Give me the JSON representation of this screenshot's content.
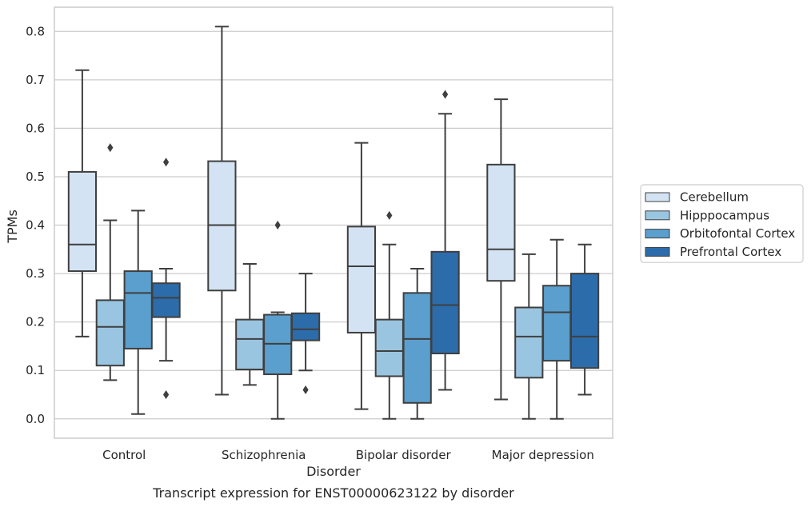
{
  "chart_data": {
    "type": "box",
    "xlabel": "Disorder",
    "ylabel": "TPMs",
    "caption": "Transcript expression for ENST00000623122 by disorder",
    "ylim": [
      -0.04,
      0.85
    ],
    "yticks": [
      "0.0",
      "0.1",
      "0.2",
      "0.3",
      "0.4",
      "0.5",
      "0.6",
      "0.7",
      "0.8"
    ],
    "grid": "horizontal",
    "legend_position": "right",
    "categories": [
      "Control",
      "Schizophrenia",
      "Bipolar disorder",
      "Major depression"
    ],
    "series": [
      {
        "name": "Cerebellum",
        "color": "#d3e3f3",
        "boxes": [
          {
            "whislo": 0.17,
            "q1": 0.305,
            "med": 0.36,
            "q3": 0.51,
            "whishi": 0.72,
            "fliers": []
          },
          {
            "whislo": 0.05,
            "q1": 0.265,
            "med": 0.4,
            "q3": 0.532,
            "whishi": 0.81,
            "fliers": []
          },
          {
            "whislo": 0.02,
            "q1": 0.178,
            "med": 0.315,
            "q3": 0.397,
            "whishi": 0.57,
            "fliers": []
          },
          {
            "whislo": 0.04,
            "q1": 0.285,
            "med": 0.35,
            "q3": 0.525,
            "whishi": 0.66,
            "fliers": []
          }
        ]
      },
      {
        "name": "Hipppocampus",
        "color": "#9ac5e0",
        "boxes": [
          {
            "whislo": 0.08,
            "q1": 0.11,
            "med": 0.19,
            "q3": 0.245,
            "whishi": 0.41,
            "fliers": [
              0.56
            ]
          },
          {
            "whislo": 0.07,
            "q1": 0.102,
            "med": 0.165,
            "q3": 0.205,
            "whishi": 0.32,
            "fliers": []
          },
          {
            "whislo": 0.0,
            "q1": 0.088,
            "med": 0.14,
            "q3": 0.205,
            "whishi": 0.36,
            "fliers": [
              0.42
            ]
          },
          {
            "whislo": 0.0,
            "q1": 0.085,
            "med": 0.17,
            "q3": 0.23,
            "whishi": 0.34,
            "fliers": []
          }
        ]
      },
      {
        "name": "Orbitofontal Cortex",
        "color": "#5a9fcd",
        "boxes": [
          {
            "whislo": 0.01,
            "q1": 0.145,
            "med": 0.26,
            "q3": 0.305,
            "whishi": 0.43,
            "fliers": []
          },
          {
            "whislo": 0.0,
            "q1": 0.092,
            "med": 0.155,
            "q3": 0.215,
            "whishi": 0.22,
            "fliers": [
              0.4
            ]
          },
          {
            "whislo": 0.0,
            "q1": 0.033,
            "med": 0.165,
            "q3": 0.26,
            "whishi": 0.31,
            "fliers": []
          },
          {
            "whislo": 0.0,
            "q1": 0.12,
            "med": 0.22,
            "q3": 0.275,
            "whishi": 0.37,
            "fliers": []
          }
        ]
      },
      {
        "name": "Prefrontal Cortex",
        "color": "#2c6cab",
        "boxes": [
          {
            "whislo": 0.12,
            "q1": 0.21,
            "med": 0.25,
            "q3": 0.28,
            "whishi": 0.31,
            "fliers": [
              0.53,
              0.05
            ]
          },
          {
            "whislo": 0.1,
            "q1": 0.162,
            "med": 0.185,
            "q3": 0.218,
            "whishi": 0.3,
            "fliers": [
              0.06
            ]
          },
          {
            "whislo": 0.06,
            "q1": 0.135,
            "med": 0.235,
            "q3": 0.345,
            "whishi": 0.63,
            "fliers": [
              0.67
            ]
          },
          {
            "whislo": 0.05,
            "q1": 0.105,
            "med": 0.17,
            "q3": 0.3,
            "whishi": 0.36,
            "fliers": []
          }
        ]
      }
    ]
  }
}
